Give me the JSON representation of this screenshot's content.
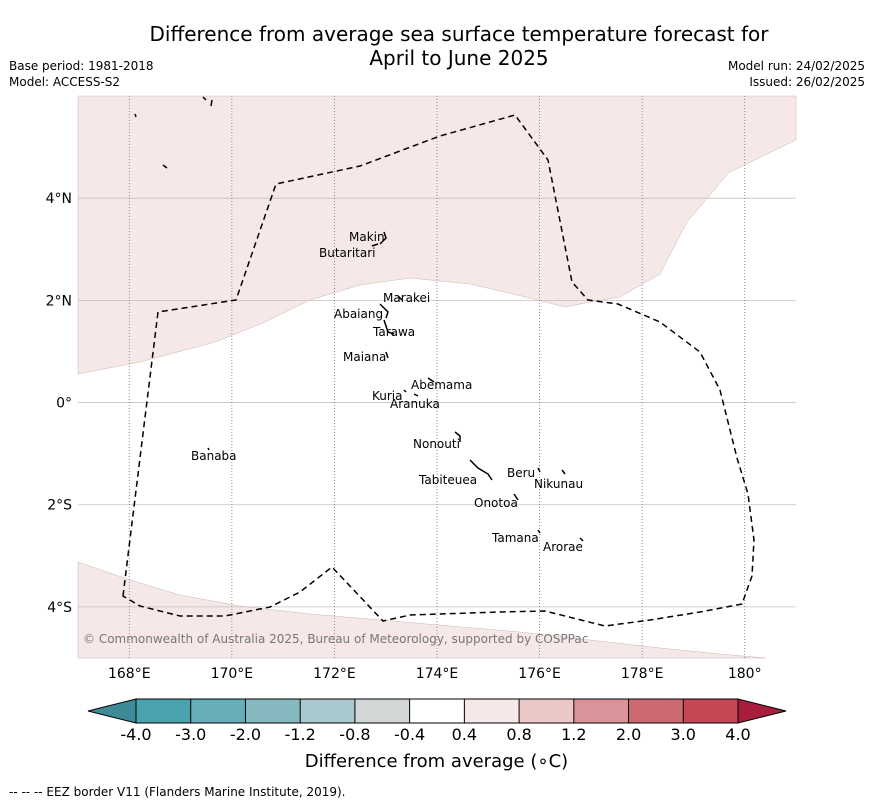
{
  "title": {
    "line1": "Difference from average sea surface temperature forecast for",
    "line2": "April to June 2025"
  },
  "meta_left": {
    "base_period": "Base period: 1981-2018",
    "model": "Model: ACCESS-S2"
  },
  "meta_right": {
    "model_run": "Model run: 24/02/2025",
    "issued": "Issued: 26/02/2025"
  },
  "map": {
    "lon_range": [
      167,
      181
    ],
    "lat_range": [
      -5,
      6
    ],
    "lat_ticks": [
      {
        "value": 4,
        "label": "4°N"
      },
      {
        "value": 2,
        "label": "2°N"
      },
      {
        "value": 0,
        "label": "0°"
      },
      {
        "value": -2,
        "label": "2°S"
      },
      {
        "value": -4,
        "label": "4°S"
      }
    ],
    "lon_ticks": [
      {
        "value": 168,
        "label": "168°E"
      },
      {
        "value": 170,
        "label": "170°E"
      },
      {
        "value": 172,
        "label": "172°E"
      },
      {
        "value": 174,
        "label": "174°E"
      },
      {
        "value": 176,
        "label": "176°E"
      },
      {
        "value": 178,
        "label": "178°E"
      },
      {
        "value": 180,
        "label": "180°"
      }
    ],
    "anomaly_fill_color": "#f5e8e7",
    "anomaly_band": "0.4 to 0.8",
    "places": [
      {
        "name": "Makin",
        "lon": 172.98,
        "lat": 3.27
      },
      {
        "name": "Butaritari",
        "lon": 172.8,
        "lat": 3.07
      },
      {
        "name": "Marakei",
        "lon": 173.3,
        "lat": 2.0
      },
      {
        "name": "Abaiang",
        "lon": 172.95,
        "lat": 1.83
      },
      {
        "name": "Tarawa",
        "lon": 173.0,
        "lat": 1.45
      },
      {
        "name": "Maiana",
        "lon": 173.05,
        "lat": 0.95
      },
      {
        "name": "Abemama",
        "lon": 173.9,
        "lat": 0.4
      },
      {
        "name": "Kuria",
        "lon": 173.35,
        "lat": 0.22
      },
      {
        "name": "Aranuka",
        "lon": 173.6,
        "lat": 0.17
      },
      {
        "name": "Banaba",
        "lon": 169.53,
        "lat": -0.87
      },
      {
        "name": "Nonouti",
        "lon": 174.45,
        "lat": -0.65
      },
      {
        "name": "Tabiteuea",
        "lon": 174.8,
        "lat": -1.35
      },
      {
        "name": "Beru",
        "lon": 176.0,
        "lat": -1.35
      },
      {
        "name": "Nikunau",
        "lon": 176.45,
        "lat": -1.35
      },
      {
        "name": "Onotoa",
        "lon": 175.55,
        "lat": -1.85
      },
      {
        "name": "Tamana",
        "lon": 175.98,
        "lat": -2.5
      },
      {
        "name": "Arorae",
        "lon": 176.82,
        "lat": -2.65
      }
    ],
    "copyright": "© Commonwealth of Australia 2025, Bureau of Meteorology, supported by COSPPac"
  },
  "colorbar": {
    "title": "Difference from average (∘C)",
    "tick_labels": [
      "-4.0",
      "-3.0",
      "-2.0",
      "-1.2",
      "-0.8",
      "-0.4",
      "0.4",
      "0.8",
      "1.2",
      "2.0",
      "3.0",
      "4.0"
    ],
    "colors": [
      "#3e8a96",
      "#4aa2ae",
      "#66aeb9",
      "#86b8c1",
      "#a8c9cd",
      "#d3d6d6",
      "#ffffff",
      "#f5e8e7",
      "#ebc7c5",
      "#da9399",
      "#cc6a74",
      "#c34754",
      "#a81d3b"
    ]
  },
  "footer": "--  --  -- EEZ border V11 (Flanders Marine Institute, 2019)."
}
